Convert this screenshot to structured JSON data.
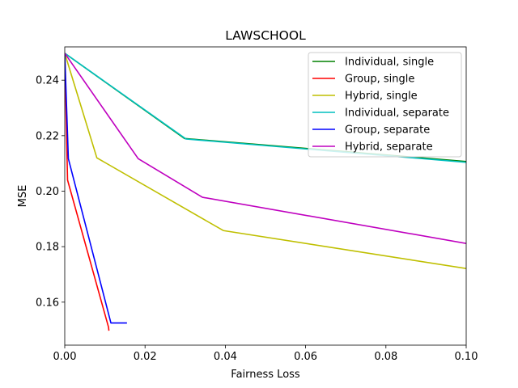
{
  "chart_data": {
    "type": "line",
    "title": "LAWSCHOOL",
    "xlabel": "Fairness Loss",
    "ylabel": "MSE",
    "xlim": [
      0,
      0.1
    ],
    "ylim": [
      0.1445,
      0.252
    ],
    "xticks": [
      0.0,
      0.02,
      0.04,
      0.06,
      0.08,
      0.1
    ],
    "xtick_labels": [
      "0.00",
      "0.02",
      "0.04",
      "0.06",
      "0.08",
      "0.10"
    ],
    "yticks": [
      0.16,
      0.18,
      0.2,
      0.22,
      0.24
    ],
    "ytick_labels": [
      "0.16",
      "0.18",
      "0.20",
      "0.22",
      "0.24"
    ],
    "grid": false,
    "legend_position": "top-right",
    "series": [
      {
        "name": "Individual, single",
        "color": "#008000",
        "x": [
          0.0,
          0.0298,
          0.1034
        ],
        "y": [
          0.2497,
          0.219,
          0.2103
        ]
      },
      {
        "name": "Group, single",
        "color": "#ff0000",
        "x": [
          0.0,
          0.0007,
          0.0109,
          0.011
        ],
        "y": [
          0.2497,
          0.204,
          0.151,
          0.1497
        ]
      },
      {
        "name": "Hybrid, single",
        "color": "#bfbf00",
        "x": [
          0.0,
          0.008,
          0.0395,
          0.1014
        ],
        "y": [
          0.2497,
          0.212,
          0.1858,
          0.1718
        ]
      },
      {
        "name": "Individual, separate",
        "color": "#00bfbf",
        "x": [
          0.0,
          0.0302,
          0.1034
        ],
        "y": [
          0.2497,
          0.2188,
          0.21
        ]
      },
      {
        "name": "Group, separate",
        "color": "#0000ff",
        "x": [
          0.0,
          0.0009,
          0.0115,
          0.0155
        ],
        "y": [
          0.2497,
          0.2117,
          0.1525,
          0.1525
        ]
      },
      {
        "name": "Hybrid, separate",
        "color": "#bf00bf",
        "x": [
          0.0,
          0.0183,
          0.0343,
          0.1034
        ],
        "y": [
          0.2497,
          0.2117,
          0.1978,
          0.1803
        ]
      }
    ]
  }
}
